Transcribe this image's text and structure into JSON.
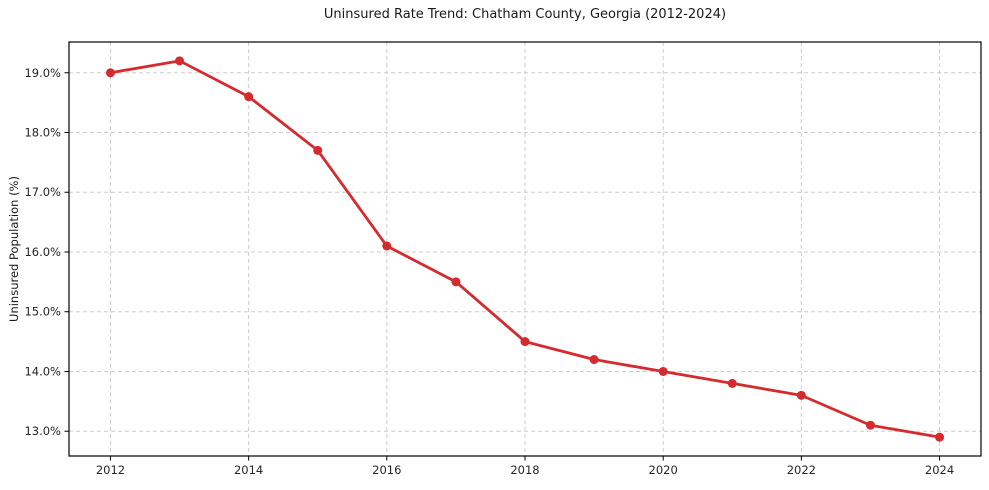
{
  "figure": {
    "title": "Uninsured Rate Trend: Chatham County, Georgia (2012-2024)"
  },
  "chart_data": {
    "type": "line",
    "title": "Uninsured Rate Trend: Chatham County, Georgia (2012-2024)",
    "xlabel": "",
    "ylabel": "Uninsured Population (%)",
    "x": [
      2012,
      2013,
      2014,
      2015,
      2016,
      2017,
      2018,
      2019,
      2020,
      2021,
      2022,
      2023,
      2024
    ],
    "series": [
      {
        "name": "Uninsured Rate",
        "values": [
          19.0,
          19.2,
          18.6,
          17.7,
          16.1,
          15.5,
          14.5,
          14.2,
          14.0,
          13.8,
          13.6,
          13.1,
          12.9
        ]
      }
    ],
    "xlim": [
      2011.4,
      2024.6
    ],
    "ylim": [
      12.585,
      19.515
    ],
    "xticks": {
      "values": [
        2012,
        2014,
        2016,
        2018,
        2020,
        2022,
        2024
      ],
      "labels": [
        "2012",
        "2014",
        "2016",
        "2018",
        "2020",
        "2022",
        "2024"
      ]
    },
    "yticks": {
      "values": [
        13.0,
        14.0,
        15.0,
        16.0,
        17.0,
        18.0,
        19.0
      ],
      "labels": [
        "13.0%",
        "14.0%",
        "15.0%",
        "16.0%",
        "17.0%",
        "18.0%",
        "19.0%"
      ]
    },
    "grid": true,
    "grid_style": "dashed",
    "legend": false,
    "styles": {
      "line_color": "#d62b2e",
      "marker": "circle",
      "marker_radius": 4.5,
      "line_width": 2.8,
      "grid_color": "#cdcdcd",
      "axis_color": "#000000",
      "tick_label_color": "#262626",
      "background": "#ffffff"
    }
  }
}
